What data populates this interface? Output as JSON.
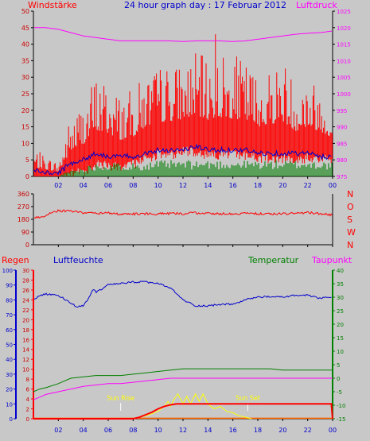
{
  "title": "24 hour graph day : 17 Februar 2012",
  "colors": {
    "background": "#c8c8c8",
    "axis": "#000000",
    "red": "#ff0000",
    "blue": "#0000cc",
    "green": "#008000",
    "magenta": "#ff00ff",
    "yellow": "#ffff00",
    "darkred": "#cc0000",
    "orange": "#ff6600"
  },
  "chart_data": [
    {
      "id": "wind_pressure",
      "type": "line",
      "title": "24 hour graph day : 17 Februar 2012",
      "left_label": "Windstärke",
      "right_label": "Luftdruck",
      "x_ticks": [
        "02",
        "04",
        "06",
        "08",
        "10",
        "12",
        "14",
        "16",
        "18",
        "20",
        "22",
        "00"
      ],
      "xlim": [
        0,
        24
      ],
      "ylim_left": [
        0,
        50
      ],
      "y_ticks_left": [
        "0",
        "5",
        "10",
        "15",
        "20",
        "25",
        "30",
        "35",
        "40",
        "45",
        "50"
      ],
      "ylim_right": [
        975,
        1025
      ],
      "y_ticks_right": [
        "975",
        "980",
        "985",
        "990",
        "995",
        "1000",
        "1005",
        "1010",
        "1015",
        "1020",
        "1025"
      ],
      "series": [
        {
          "key": "pressure",
          "color": "magenta",
          "axis": "right",
          "x": [
            0,
            1,
            2,
            3,
            4,
            5,
            6,
            7,
            8,
            9,
            10,
            11,
            12,
            13,
            14,
            15,
            16,
            17,
            18,
            19,
            20,
            21,
            22,
            23,
            24
          ],
          "values": [
            1020,
            1020,
            1019.5,
            1018.5,
            1017.5,
            1017,
            1016.5,
            1016,
            1016,
            1016,
            1016,
            1016,
            1015.8,
            1016,
            1016,
            1016,
            1015.8,
            1016,
            1016.5,
            1017,
            1017.5,
            1018,
            1018.3,
            1018.5,
            1019
          ]
        },
        {
          "key": "gust_max",
          "color": "red",
          "axis": "left",
          "x": [
            0,
            1,
            2,
            3,
            4,
            5,
            6,
            7,
            8,
            9,
            10,
            11,
            12,
            13,
            14,
            15,
            16,
            17,
            18,
            19,
            20,
            21,
            22,
            23,
            24
          ],
          "values": [
            8,
            6,
            4,
            18,
            22,
            30,
            28,
            24,
            25,
            30,
            32,
            33,
            33,
            36,
            34,
            36,
            35,
            34,
            30,
            32,
            35,
            28,
            30,
            26,
            22
          ]
        },
        {
          "key": "gust_min",
          "color": "red",
          "axis": "left",
          "x": [
            0,
            1,
            2,
            3,
            4,
            5,
            6,
            7,
            8,
            9,
            10,
            11,
            12,
            13,
            14,
            15,
            16,
            17,
            18,
            19,
            20,
            21,
            22,
            23,
            24
          ],
          "values": [
            0,
            0,
            0,
            2,
            3,
            5,
            5,
            4,
            5,
            7,
            8,
            8,
            9,
            9,
            8,
            8,
            8,
            8,
            7,
            7,
            7,
            6,
            7,
            7,
            6
          ]
        },
        {
          "key": "wind_avg",
          "color": "blue",
          "axis": "left",
          "x": [
            0,
            1,
            2,
            3,
            4,
            5,
            6,
            7,
            8,
            9,
            10,
            11,
            12,
            13,
            14,
            15,
            16,
            17,
            18,
            19,
            20,
            21,
            22,
            23,
            24
          ],
          "values": [
            2,
            1,
            1,
            4,
            5,
            7,
            6,
            6,
            6,
            7,
            8,
            8,
            8,
            9,
            8,
            8,
            8,
            8,
            7,
            7,
            7,
            7,
            7,
            6,
            6
          ]
        },
        {
          "key": "wind_low",
          "color": "green",
          "axis": "left",
          "x": [
            0,
            1,
            2,
            3,
            4,
            5,
            6,
            7,
            8,
            9,
            10,
            11,
            12,
            13,
            14,
            15,
            16,
            17,
            18,
            19,
            20,
            21,
            22,
            23,
            24
          ],
          "values": [
            0,
            0,
            0,
            1.5,
            2,
            3,
            3,
            3,
            3,
            3,
            3.5,
            3.5,
            3.5,
            3.5,
            3.5,
            3.5,
            3.5,
            3.5,
            3.5,
            3.5,
            3.5,
            3.5,
            3.5,
            3.5,
            3
          ]
        }
      ]
    },
    {
      "id": "direction",
      "type": "line",
      "x_ticks": [
        "02",
        "04",
        "06",
        "08",
        "10",
        "12",
        "14",
        "16",
        "18",
        "20",
        "22",
        "00"
      ],
      "xlim": [
        0,
        24
      ],
      "ylim": [
        0,
        360
      ],
      "y_ticks": [
        "0",
        "90",
        "180",
        "270",
        "360"
      ],
      "compass_labels": [
        "N",
        "W",
        "S",
        "O",
        "N"
      ],
      "series": [
        {
          "key": "direction",
          "color": "red",
          "x": [
            0,
            0.5,
            1,
            1.5,
            2,
            3,
            4,
            5,
            6,
            7,
            8,
            9,
            10,
            11,
            12,
            13,
            14,
            15,
            16,
            17,
            18,
            19,
            20,
            21,
            22,
            23,
            24
          ],
          "values": [
            190,
            195,
            205,
            235,
            240,
            238,
            228,
            222,
            225,
            215,
            218,
            220,
            218,
            222,
            220,
            225,
            222,
            220,
            218,
            222,
            220,
            218,
            220,
            222,
            228,
            220,
            210
          ]
        }
      ]
    },
    {
      "id": "rain_humidity_temp",
      "type": "line",
      "labels": {
        "rain": "Regen",
        "humidity": "Luftfeuchte",
        "temperature": "Temperatur",
        "dewpoint": "Taupunkt"
      },
      "annotations": [
        {
          "text": "Sun Rise",
          "x": 7.0
        },
        {
          "text": "Sun Set",
          "x": 17.2
        }
      ],
      "x_ticks": [
        "02",
        "04",
        "06",
        "08",
        "10",
        "12",
        "14",
        "16",
        "18",
        "20",
        "22",
        "00"
      ],
      "xlim": [
        0,
        24
      ],
      "ylim_humidity": [
        0,
        100
      ],
      "y_ticks_humidity": [
        "0",
        "10",
        "20",
        "30",
        "40",
        "50",
        "60",
        "70",
        "80",
        "90",
        "100"
      ],
      "ylim_rain": [
        0,
        30
      ],
      "y_ticks_rain": [
        "0",
        "2",
        "4",
        "6",
        "8",
        "10",
        "12",
        "14",
        "16",
        "18",
        "20",
        "22",
        "24",
        "26",
        "28",
        "30"
      ],
      "ylim_temp": [
        -15,
        40
      ],
      "y_ticks_temp": [
        "-15",
        "-10",
        "-5",
        "0",
        "5",
        "10",
        "15",
        "20",
        "25",
        "30",
        "35",
        "40"
      ],
      "series": [
        {
          "key": "humidity",
          "color": "blue",
          "axis": "humidity",
          "x": [
            0,
            0.5,
            1,
            2,
            3,
            3.5,
            4,
            4.5,
            4.8,
            5,
            6,
            7,
            8,
            9,
            10,
            11,
            12,
            13,
            14,
            15,
            16,
            17,
            18,
            19,
            20,
            21,
            22,
            23,
            24
          ],
          "values": [
            80,
            83,
            84,
            83,
            78,
            75,
            76,
            82,
            88,
            85,
            90,
            91,
            92,
            92,
            91,
            88,
            80,
            76,
            76,
            77,
            77,
            80,
            82,
            82,
            82,
            83,
            83,
            81,
            82
          ]
        },
        {
          "key": "temperature",
          "color": "green",
          "axis": "temp",
          "x": [
            0,
            0.5,
            1,
            2,
            3,
            4,
            5,
            6,
            7,
            8,
            9,
            10,
            11,
            12,
            13,
            14,
            15,
            16,
            17,
            18,
            19,
            20,
            21,
            22,
            23,
            24
          ],
          "values": [
            -5,
            -4,
            -3.5,
            -2,
            0,
            0.5,
            1,
            1,
            1,
            1.5,
            2,
            2.5,
            3,
            3.5,
            3.5,
            3.5,
            3.5,
            3.5,
            3.5,
            3.5,
            3.5,
            3,
            3,
            3,
            3,
            3
          ]
        },
        {
          "key": "dewpoint",
          "color": "magenta",
          "axis": "temp",
          "x": [
            0,
            0.5,
            1,
            2,
            3,
            4,
            5,
            6,
            7,
            8,
            9,
            10,
            11,
            12,
            13,
            14,
            15,
            16,
            17,
            18,
            19,
            20,
            21,
            22,
            23,
            24
          ],
          "values": [
            -8,
            -7,
            -6,
            -5,
            -4,
            -3,
            -2.5,
            -2,
            -2,
            -1.5,
            -1,
            -0.5,
            0,
            0,
            0,
            0,
            0,
            0,
            0,
            0,
            0,
            0,
            0,
            0,
            0,
            0
          ]
        },
        {
          "key": "rain",
          "color": "red",
          "axis": "rain",
          "x": [
            0,
            8,
            8.5,
            9,
            9.5,
            10,
            10.5,
            11,
            11.5,
            12,
            18,
            23.9,
            24
          ],
          "values": [
            0,
            0,
            0.3,
            0.8,
            1.3,
            2,
            2.5,
            2.8,
            3,
            3,
            3,
            3,
            0
          ]
        },
        {
          "key": "solar",
          "color": "yellow",
          "axis": "rain",
          "x": [
            7.5,
            8,
            8.5,
            9,
            9.5,
            10,
            10.5,
            10.8,
            11,
            11.3,
            11.6,
            12,
            12.3,
            12.6,
            13,
            13.3,
            13.6,
            14,
            14.5,
            15,
            15.5,
            16,
            16.5,
            17,
            17.5
          ],
          "values": [
            0,
            0.1,
            0.3,
            0.6,
            1,
            1.5,
            2.5,
            3.5,
            2.5,
            4,
            5,
            3,
            4.5,
            3,
            5,
            3.5,
            5,
            3,
            2,
            2.5,
            1.5,
            1.2,
            0.6,
            0.3,
            0
          ]
        },
        {
          "key": "rain_rate",
          "color": "orange",
          "axis": "rain",
          "x": [
            0,
            24
          ],
          "values": [
            0.1,
            0.1
          ]
        }
      ]
    }
  ]
}
